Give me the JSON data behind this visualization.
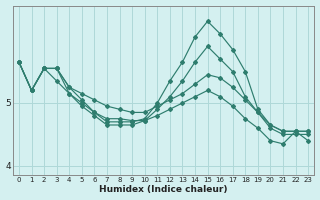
{
  "title": "",
  "xlabel": "Humidex (Indice chaleur)",
  "bg_color": "#d4f0f0",
  "grid_color": "#aed8d8",
  "line_color": "#2e7d6e",
  "x_hours": [
    0,
    1,
    2,
    3,
    4,
    5,
    6,
    7,
    8,
    9,
    10,
    11,
    12,
    13,
    14,
    15,
    16,
    17,
    18,
    19,
    20,
    21,
    22,
    23
  ],
  "series": [
    [
      5.65,
      5.2,
      5.55,
      5.55,
      5.25,
      5.05,
      4.85,
      4.7,
      4.7,
      4.7,
      4.75,
      5.0,
      5.35,
      5.65,
      6.05,
      6.3,
      6.1,
      5.85,
      5.5,
      4.9,
      4.65,
      4.55,
      4.55,
      4.55
    ],
    [
      5.65,
      5.2,
      5.55,
      5.55,
      5.15,
      4.95,
      4.8,
      4.65,
      4.65,
      4.65,
      4.72,
      4.9,
      5.1,
      5.35,
      5.65,
      5.9,
      5.7,
      5.5,
      5.1,
      4.85,
      4.6,
      4.5,
      4.5,
      4.5
    ],
    [
      5.65,
      5.2,
      5.55,
      5.55,
      5.25,
      5.15,
      5.05,
      4.95,
      4.9,
      4.85,
      4.85,
      4.95,
      5.05,
      5.15,
      5.3,
      5.45,
      5.4,
      5.25,
      5.05,
      4.85,
      4.65,
      4.55,
      4.55,
      4.55
    ],
    [
      5.65,
      5.2,
      5.55,
      5.35,
      5.15,
      5.0,
      4.85,
      4.75,
      4.75,
      4.72,
      4.72,
      4.8,
      4.9,
      5.0,
      5.1,
      5.2,
      5.1,
      4.95,
      4.75,
      4.6,
      4.4,
      4.35,
      4.55,
      4.4
    ]
  ],
  "ylim": [
    3.85,
    6.55
  ],
  "yticks": [
    4,
    5
  ],
  "xlim": [
    -0.5,
    23.5
  ]
}
